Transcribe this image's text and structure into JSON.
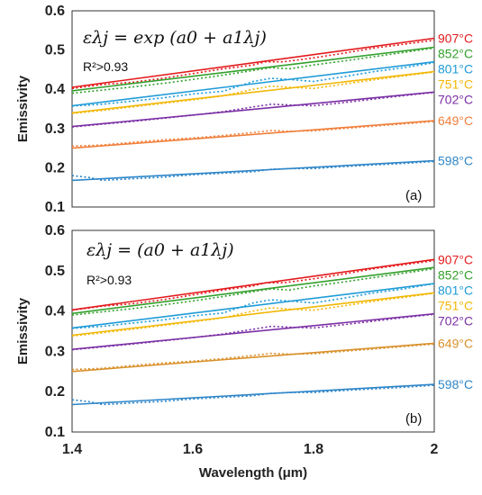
{
  "chart_data": [
    {
      "type": "line",
      "panel_label": "(a)",
      "equation": "ελj = exp (a0 + a1λj)",
      "r2_text": "R²>0.93",
      "xlabel": "",
      "ylabel": "Emissivity",
      "xlim": [
        1.4,
        2.0
      ],
      "ylim": [
        0.1,
        0.6
      ],
      "xticks": [
        "1.4",
        "1.6",
        "1.8",
        "2"
      ],
      "yticks": [
        "0.1",
        "0.2",
        "0.3",
        "0.4",
        "0.5",
        "0.6"
      ],
      "series": [
        {
          "name": "907°C",
          "color": "#e31a1c",
          "fit": [
            [
              1.4,
              0.405
            ],
            [
              2.0,
              0.53
            ]
          ],
          "measured": [
            [
              1.4,
              0.402
            ],
            [
              1.45,
              0.412
            ],
            [
              1.5,
              0.418
            ],
            [
              1.55,
              0.428
            ],
            [
              1.6,
              0.44
            ],
            [
              1.65,
              0.452
            ],
            [
              1.7,
              0.462
            ],
            [
              1.72,
              0.47
            ],
            [
              1.75,
              0.47
            ],
            [
              1.78,
              0.476
            ],
            [
              1.8,
              0.48
            ],
            [
              1.85,
              0.492
            ],
            [
              1.9,
              0.505
            ],
            [
              1.95,
              0.515
            ],
            [
              2.0,
              0.525
            ]
          ]
        },
        {
          "name": "852°C",
          "color": "#33a02c",
          "fit": [
            [
              1.4,
              0.396
            ],
            [
              2.0,
              0.507
            ]
          ],
          "measured": [
            [
              1.4,
              0.39
            ],
            [
              1.45,
              0.398
            ],
            [
              1.5,
              0.406
            ],
            [
              1.55,
              0.415
            ],
            [
              1.6,
              0.425
            ],
            [
              1.65,
              0.436
            ],
            [
              1.7,
              0.448
            ],
            [
              1.73,
              0.455
            ],
            [
              1.76,
              0.452
            ],
            [
              1.8,
              0.462
            ],
            [
              1.85,
              0.472
            ],
            [
              1.9,
              0.483
            ],
            [
              1.95,
              0.494
            ],
            [
              2.0,
              0.505
            ]
          ]
        },
        {
          "name": "801°C",
          "color": "#1f9bd7",
          "fit": [
            [
              1.4,
              0.358
            ],
            [
              2.0,
              0.47
            ]
          ],
          "measured": [
            [
              1.4,
              0.357
            ],
            [
              1.45,
              0.362
            ],
            [
              1.5,
              0.37
            ],
            [
              1.55,
              0.378
            ],
            [
              1.6,
              0.388
            ],
            [
              1.65,
              0.395
            ],
            [
              1.7,
              0.42
            ],
            [
              1.73,
              0.428
            ],
            [
              1.76,
              0.425
            ],
            [
              1.8,
              0.42
            ],
            [
              1.85,
              0.432
            ],
            [
              1.9,
              0.445
            ],
            [
              1.95,
              0.455
            ],
            [
              2.0,
              0.468
            ]
          ]
        },
        {
          "name": "751°C",
          "color": "#f2b705",
          "fit": [
            [
              1.4,
              0.34
            ],
            [
              2.0,
              0.445
            ]
          ],
          "measured": [
            [
              1.4,
              0.338
            ],
            [
              1.45,
              0.346
            ],
            [
              1.5,
              0.355
            ],
            [
              1.55,
              0.364
            ],
            [
              1.6,
              0.373
            ],
            [
              1.65,
              0.383
            ],
            [
              1.7,
              0.4
            ],
            [
              1.73,
              0.408
            ],
            [
              1.76,
              0.405
            ],
            [
              1.8,
              0.402
            ],
            [
              1.85,
              0.413
            ],
            [
              1.9,
              0.424
            ],
            [
              1.95,
              0.434
            ],
            [
              2.0,
              0.444
            ]
          ]
        },
        {
          "name": "702°C",
          "color": "#7b2fa5",
          "fit": [
            [
              1.4,
              0.305
            ],
            [
              2.0,
              0.393
            ]
          ],
          "measured": [
            [
              1.4,
              0.304
            ],
            [
              1.45,
              0.311
            ],
            [
              1.5,
              0.318
            ],
            [
              1.55,
              0.326
            ],
            [
              1.6,
              0.334
            ],
            [
              1.65,
              0.343
            ],
            [
              1.7,
              0.355
            ],
            [
              1.73,
              0.362
            ],
            [
              1.76,
              0.36
            ],
            [
              1.8,
              0.358
            ],
            [
              1.85,
              0.366
            ],
            [
              1.9,
              0.375
            ],
            [
              1.95,
              0.384
            ],
            [
              2.0,
              0.392
            ]
          ]
        },
        {
          "name": "649°C",
          "color": "#f07f3a",
          "fit": [
            [
              1.4,
              0.25
            ],
            [
              2.0,
              0.32
            ]
          ],
          "measured": [
            [
              1.4,
              0.255
            ],
            [
              1.45,
              0.258
            ],
            [
              1.5,
              0.265
            ],
            [
              1.55,
              0.271
            ],
            [
              1.6,
              0.276
            ],
            [
              1.65,
              0.282
            ],
            [
              1.7,
              0.29
            ],
            [
              1.73,
              0.295
            ],
            [
              1.76,
              0.293
            ],
            [
              1.8,
              0.294
            ],
            [
              1.85,
              0.3
            ],
            [
              1.9,
              0.306
            ],
            [
              1.95,
              0.312
            ],
            [
              2.0,
              0.318
            ]
          ]
        },
        {
          "name": "598°C",
          "color": "#2e86c9",
          "fit": [
            [
              1.4,
              0.168
            ],
            [
              2.0,
              0.218
            ]
          ],
          "measured": [
            [
              1.4,
              0.18
            ],
            [
              1.43,
              0.175
            ],
            [
              1.45,
              0.168
            ],
            [
              1.5,
              0.172
            ],
            [
              1.55,
              0.176
            ],
            [
              1.6,
              0.182
            ],
            [
              1.65,
              0.186
            ],
            [
              1.7,
              0.19
            ],
            [
              1.73,
              0.196
            ],
            [
              1.76,
              0.198
            ],
            [
              1.8,
              0.198
            ],
            [
              1.85,
              0.203
            ],
            [
              1.9,
              0.207
            ],
            [
              1.95,
              0.211
            ],
            [
              2.0,
              0.216
            ]
          ]
        }
      ]
    },
    {
      "type": "line",
      "panel_label": "(b)",
      "equation": "ελj = (a0 + a1λj)",
      "r2_text": "R²>0.93",
      "xlabel": "Wavelength (μm)",
      "ylabel": "Emissivity",
      "xlim": [
        1.4,
        2.0
      ],
      "ylim": [
        0.1,
        0.6
      ],
      "xticks": [
        "1.4",
        "1.6",
        "1.8",
        "2"
      ],
      "yticks": [
        "0.1",
        "0.2",
        "0.3",
        "0.4",
        "0.5",
        "0.6"
      ],
      "series": [
        {
          "name": "907°C",
          "color": "#e31a1c",
          "fit": [
            [
              1.4,
              0.403
            ],
            [
              2.0,
              0.528
            ]
          ],
          "measured": [
            [
              1.4,
              0.402
            ],
            [
              1.45,
              0.412
            ],
            [
              1.5,
              0.418
            ],
            [
              1.55,
              0.428
            ],
            [
              1.6,
              0.44
            ],
            [
              1.65,
              0.452
            ],
            [
              1.7,
              0.462
            ],
            [
              1.72,
              0.47
            ],
            [
              1.75,
              0.47
            ],
            [
              1.78,
              0.476
            ],
            [
              1.8,
              0.48
            ],
            [
              1.85,
              0.492
            ],
            [
              1.9,
              0.505
            ],
            [
              1.95,
              0.515
            ],
            [
              2.0,
              0.525
            ]
          ]
        },
        {
          "name": "852°C",
          "color": "#33a02c",
          "fit": [
            [
              1.4,
              0.394
            ],
            [
              2.0,
              0.508
            ]
          ],
          "measured": [
            [
              1.4,
              0.39
            ],
            [
              1.45,
              0.398
            ],
            [
              1.5,
              0.406
            ],
            [
              1.55,
              0.415
            ],
            [
              1.6,
              0.425
            ],
            [
              1.65,
              0.436
            ],
            [
              1.7,
              0.448
            ],
            [
              1.73,
              0.455
            ],
            [
              1.76,
              0.452
            ],
            [
              1.8,
              0.462
            ],
            [
              1.85,
              0.472
            ],
            [
              1.9,
              0.483
            ],
            [
              1.95,
              0.494
            ],
            [
              2.0,
              0.505
            ]
          ]
        },
        {
          "name": "801°C",
          "color": "#1f9bd7",
          "fit": [
            [
              1.4,
              0.358
            ],
            [
              2.0,
              0.468
            ]
          ],
          "measured": [
            [
              1.4,
              0.357
            ],
            [
              1.45,
              0.362
            ],
            [
              1.5,
              0.37
            ],
            [
              1.55,
              0.378
            ],
            [
              1.6,
              0.388
            ],
            [
              1.65,
              0.395
            ],
            [
              1.7,
              0.42
            ],
            [
              1.73,
              0.428
            ],
            [
              1.76,
              0.425
            ],
            [
              1.8,
              0.42
            ],
            [
              1.85,
              0.432
            ],
            [
              1.9,
              0.445
            ],
            [
              1.95,
              0.455
            ],
            [
              2.0,
              0.468
            ]
          ]
        },
        {
          "name": "751°C",
          "color": "#f2b705",
          "fit": [
            [
              1.4,
              0.34
            ],
            [
              2.0,
              0.445
            ]
          ],
          "measured": [
            [
              1.4,
              0.338
            ],
            [
              1.45,
              0.346
            ],
            [
              1.5,
              0.355
            ],
            [
              1.55,
              0.364
            ],
            [
              1.6,
              0.373
            ],
            [
              1.65,
              0.383
            ],
            [
              1.7,
              0.4
            ],
            [
              1.73,
              0.408
            ],
            [
              1.76,
              0.405
            ],
            [
              1.8,
              0.402
            ],
            [
              1.85,
              0.413
            ],
            [
              1.9,
              0.424
            ],
            [
              1.95,
              0.434
            ],
            [
              2.0,
              0.444
            ]
          ]
        },
        {
          "name": "702°C",
          "color": "#7b2fa5",
          "fit": [
            [
              1.4,
              0.305
            ],
            [
              2.0,
              0.393
            ]
          ],
          "measured": [
            [
              1.4,
              0.304
            ],
            [
              1.45,
              0.311
            ],
            [
              1.5,
              0.318
            ],
            [
              1.55,
              0.326
            ],
            [
              1.6,
              0.334
            ],
            [
              1.65,
              0.343
            ],
            [
              1.7,
              0.355
            ],
            [
              1.73,
              0.362
            ],
            [
              1.76,
              0.36
            ],
            [
              1.8,
              0.358
            ],
            [
              1.85,
              0.366
            ],
            [
              1.9,
              0.375
            ],
            [
              1.95,
              0.384
            ],
            [
              2.0,
              0.392
            ]
          ]
        },
        {
          "name": "649°C",
          "color": "#d9902a",
          "fit": [
            [
              1.4,
              0.25
            ],
            [
              2.0,
              0.32
            ]
          ],
          "measured": [
            [
              1.4,
              0.255
            ],
            [
              1.45,
              0.258
            ],
            [
              1.5,
              0.265
            ],
            [
              1.55,
              0.271
            ],
            [
              1.6,
              0.276
            ],
            [
              1.65,
              0.282
            ],
            [
              1.7,
              0.29
            ],
            [
              1.73,
              0.295
            ],
            [
              1.76,
              0.293
            ],
            [
              1.8,
              0.294
            ],
            [
              1.85,
              0.3
            ],
            [
              1.9,
              0.306
            ],
            [
              1.95,
              0.312
            ],
            [
              2.0,
              0.318
            ]
          ]
        },
        {
          "name": "598°C",
          "color": "#2e86c9",
          "fit": [
            [
              1.4,
              0.168
            ],
            [
              2.0,
              0.218
            ]
          ],
          "measured": [
            [
              1.4,
              0.18
            ],
            [
              1.43,
              0.175
            ],
            [
              1.45,
              0.168
            ],
            [
              1.5,
              0.172
            ],
            [
              1.55,
              0.176
            ],
            [
              1.6,
              0.182
            ],
            [
              1.65,
              0.186
            ],
            [
              1.7,
              0.19
            ],
            [
              1.73,
              0.196
            ],
            [
              1.76,
              0.198
            ],
            [
              1.8,
              0.198
            ],
            [
              1.85,
              0.203
            ],
            [
              1.9,
              0.207
            ],
            [
              1.95,
              0.211
            ],
            [
              2.0,
              0.216
            ]
          ]
        }
      ]
    }
  ]
}
